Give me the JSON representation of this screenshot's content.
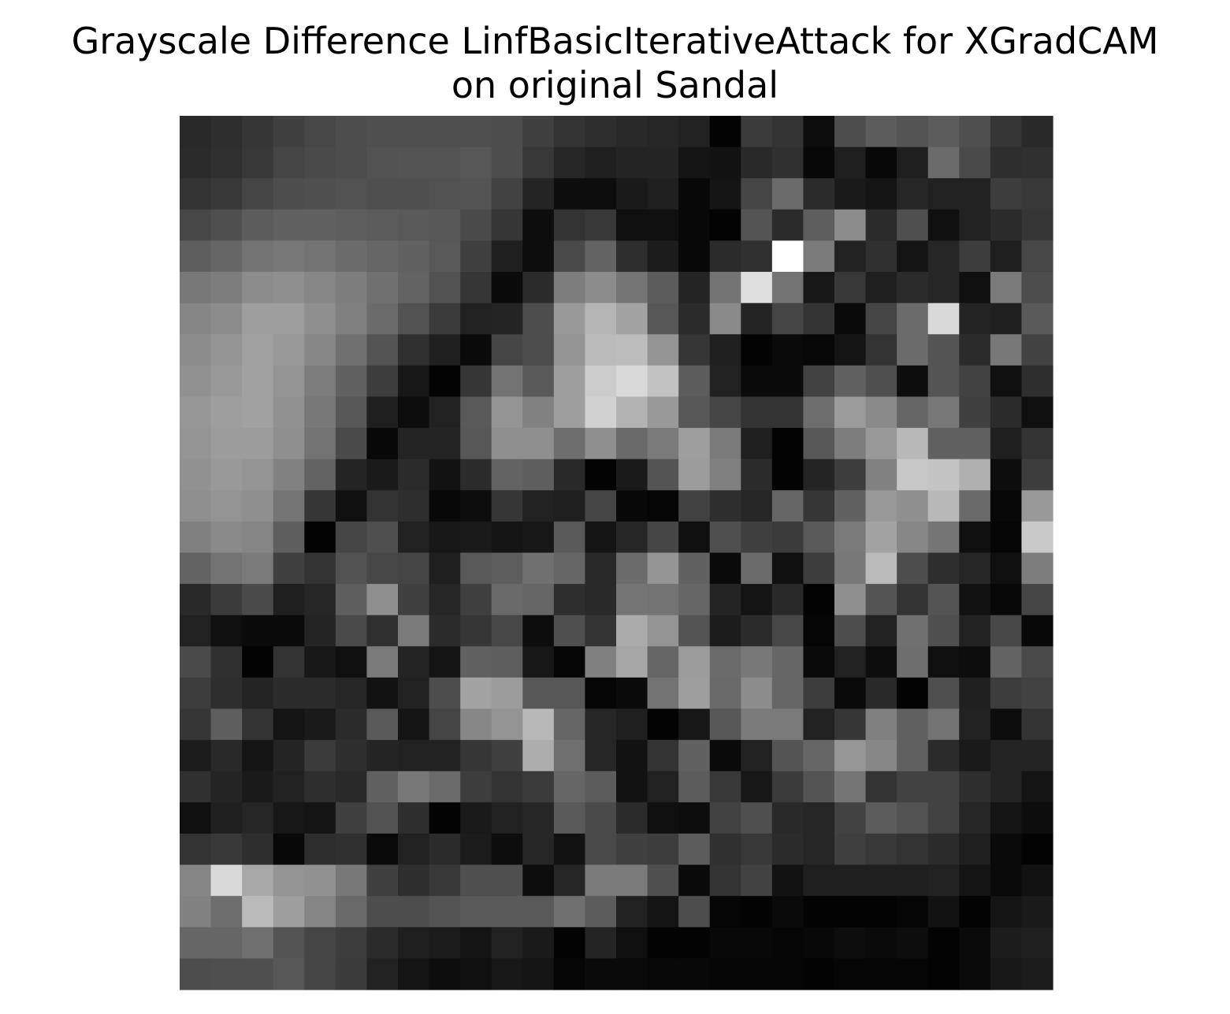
{
  "chart_data": {
    "type": "heatmap",
    "title_line1": "Grayscale Difference LinfBasicIterativeAttack for XGradCAM",
    "title_line2": "on original Sandal",
    "colormap": "gray",
    "axes_visible": false,
    "rows": 28,
    "cols": 28,
    "values": [
      [
        0.16,
        0.18,
        0.21,
        0.25,
        0.28,
        0.3,
        0.31,
        0.31,
        0.31,
        0.31,
        0.3,
        0.25,
        0.2,
        0.18,
        0.16,
        0.15,
        0.13,
        0.01,
        0.23,
        0.2,
        0.05,
        0.3,
        0.36,
        0.33,
        0.36,
        0.31,
        0.21,
        0.16
      ],
      [
        0.17,
        0.19,
        0.22,
        0.27,
        0.29,
        0.3,
        0.32,
        0.33,
        0.33,
        0.34,
        0.3,
        0.22,
        0.15,
        0.12,
        0.14,
        0.14,
        0.08,
        0.07,
        0.16,
        0.19,
        0.03,
        0.12,
        0.03,
        0.12,
        0.42,
        0.29,
        0.18,
        0.19
      ],
      [
        0.2,
        0.22,
        0.27,
        0.3,
        0.31,
        0.32,
        0.31,
        0.31,
        0.32,
        0.33,
        0.26,
        0.14,
        0.05,
        0.05,
        0.1,
        0.12,
        0.03,
        0.08,
        0.27,
        0.42,
        0.17,
        0.1,
        0.08,
        0.15,
        0.13,
        0.13,
        0.24,
        0.22
      ],
      [
        0.28,
        0.31,
        0.36,
        0.38,
        0.38,
        0.37,
        0.36,
        0.35,
        0.34,
        0.29,
        0.21,
        0.05,
        0.2,
        0.22,
        0.06,
        0.06,
        0.03,
        0.01,
        0.33,
        0.17,
        0.37,
        0.55,
        0.17,
        0.31,
        0.06,
        0.13,
        0.17,
        0.21
      ],
      [
        0.37,
        0.4,
        0.45,
        0.47,
        0.45,
        0.42,
        0.4,
        0.38,
        0.35,
        0.25,
        0.12,
        0.05,
        0.29,
        0.39,
        0.18,
        0.11,
        0.03,
        0.17,
        0.19,
        1.0,
        0.48,
        0.13,
        0.19,
        0.08,
        0.15,
        0.24,
        0.12,
        0.28
      ],
      [
        0.47,
        0.49,
        0.55,
        0.56,
        0.53,
        0.49,
        0.44,
        0.39,
        0.32,
        0.21,
        0.04,
        0.17,
        0.49,
        0.55,
        0.46,
        0.36,
        0.14,
        0.45,
        0.87,
        0.45,
        0.09,
        0.22,
        0.12,
        0.17,
        0.15,
        0.06,
        0.48,
        0.3
      ],
      [
        0.52,
        0.55,
        0.62,
        0.62,
        0.56,
        0.5,
        0.42,
        0.32,
        0.23,
        0.13,
        0.14,
        0.3,
        0.6,
        0.71,
        0.64,
        0.34,
        0.17,
        0.54,
        0.14,
        0.27,
        0.2,
        0.04,
        0.27,
        0.42,
        0.85,
        0.14,
        0.12,
        0.35
      ],
      [
        0.55,
        0.58,
        0.63,
        0.6,
        0.53,
        0.44,
        0.33,
        0.19,
        0.12,
        0.04,
        0.27,
        0.3,
        0.58,
        0.73,
        0.74,
        0.58,
        0.21,
        0.12,
        0.01,
        0.04,
        0.03,
        0.08,
        0.2,
        0.42,
        0.33,
        0.17,
        0.47,
        0.26
      ],
      [
        0.57,
        0.6,
        0.63,
        0.58,
        0.49,
        0.38,
        0.24,
        0.09,
        0.01,
        0.21,
        0.45,
        0.35,
        0.62,
        0.8,
        0.85,
        0.76,
        0.36,
        0.13,
        0.04,
        0.04,
        0.26,
        0.38,
        0.31,
        0.05,
        0.33,
        0.26,
        0.06,
        0.18
      ],
      [
        0.59,
        0.62,
        0.63,
        0.57,
        0.47,
        0.34,
        0.12,
        0.05,
        0.13,
        0.35,
        0.58,
        0.51,
        0.62,
        0.82,
        0.7,
        0.6,
        0.34,
        0.27,
        0.2,
        0.2,
        0.43,
        0.61,
        0.54,
        0.4,
        0.47,
        0.25,
        0.17,
        0.06
      ],
      [
        0.58,
        0.61,
        0.61,
        0.56,
        0.45,
        0.29,
        0.03,
        0.14,
        0.14,
        0.34,
        0.56,
        0.56,
        0.43,
        0.56,
        0.41,
        0.48,
        0.62,
        0.48,
        0.12,
        0.01,
        0.34,
        0.49,
        0.6,
        0.72,
        0.38,
        0.38,
        0.12,
        0.2
      ],
      [
        0.57,
        0.6,
        0.58,
        0.51,
        0.39,
        0.14,
        0.1,
        0.17,
        0.07,
        0.17,
        0.39,
        0.37,
        0.16,
        0.01,
        0.1,
        0.33,
        0.61,
        0.5,
        0.17,
        0.01,
        0.14,
        0.24,
        0.51,
        0.78,
        0.77,
        0.69,
        0.05,
        0.24
      ],
      [
        0.56,
        0.58,
        0.56,
        0.46,
        0.21,
        0.06,
        0.2,
        0.18,
        0.03,
        0.05,
        0.21,
        0.13,
        0.12,
        0.27,
        0.03,
        0.02,
        0.26,
        0.18,
        0.15,
        0.4,
        0.21,
        0.38,
        0.6,
        0.56,
        0.72,
        0.41,
        0.03,
        0.6
      ],
      [
        0.5,
        0.54,
        0.52,
        0.37,
        0.01,
        0.27,
        0.31,
        0.13,
        0.09,
        0.1,
        0.08,
        0.09,
        0.35,
        0.08,
        0.15,
        0.27,
        0.06,
        0.31,
        0.25,
        0.23,
        0.35,
        0.48,
        0.64,
        0.53,
        0.46,
        0.06,
        0.02,
        0.79
      ],
      [
        0.39,
        0.45,
        0.48,
        0.25,
        0.2,
        0.32,
        0.28,
        0.27,
        0.12,
        0.35,
        0.37,
        0.44,
        0.4,
        0.16,
        0.42,
        0.58,
        0.38,
        0.04,
        0.42,
        0.06,
        0.24,
        0.47,
        0.73,
        0.3,
        0.18,
        0.15,
        0.06,
        0.49
      ],
      [
        0.16,
        0.23,
        0.29,
        0.12,
        0.15,
        0.37,
        0.56,
        0.25,
        0.15,
        0.25,
        0.41,
        0.4,
        0.18,
        0.16,
        0.46,
        0.45,
        0.4,
        0.14,
        0.08,
        0.16,
        0.01,
        0.56,
        0.33,
        0.2,
        0.33,
        0.07,
        0.03,
        0.27
      ],
      [
        0.13,
        0.06,
        0.04,
        0.04,
        0.14,
        0.29,
        0.19,
        0.48,
        0.17,
        0.21,
        0.28,
        0.05,
        0.31,
        0.2,
        0.67,
        0.58,
        0.33,
        0.11,
        0.17,
        0.28,
        0.02,
        0.3,
        0.13,
        0.44,
        0.31,
        0.13,
        0.28,
        0.03
      ],
      [
        0.29,
        0.19,
        0.01,
        0.2,
        0.09,
        0.06,
        0.48,
        0.14,
        0.08,
        0.38,
        0.37,
        0.09,
        0.02,
        0.5,
        0.65,
        0.4,
        0.61,
        0.42,
        0.47,
        0.4,
        0.04,
        0.13,
        0.05,
        0.43,
        0.06,
        0.05,
        0.39,
        0.29
      ],
      [
        0.24,
        0.18,
        0.14,
        0.17,
        0.17,
        0.15,
        0.07,
        0.13,
        0.3,
        0.64,
        0.61,
        0.34,
        0.34,
        0.02,
        0.04,
        0.45,
        0.62,
        0.41,
        0.55,
        0.4,
        0.24,
        0.04,
        0.16,
        0.01,
        0.31,
        0.12,
        0.24,
        0.26
      ],
      [
        0.21,
        0.37,
        0.2,
        0.08,
        0.1,
        0.17,
        0.35,
        0.08,
        0.27,
        0.53,
        0.58,
        0.72,
        0.4,
        0.15,
        0.12,
        0.01,
        0.09,
        0.34,
        0.48,
        0.48,
        0.13,
        0.21,
        0.5,
        0.38,
        0.45,
        0.13,
        0.05,
        0.2
      ],
      [
        0.11,
        0.16,
        0.08,
        0.14,
        0.23,
        0.18,
        0.14,
        0.13,
        0.13,
        0.21,
        0.25,
        0.68,
        0.44,
        0.15,
        0.07,
        0.2,
        0.38,
        0.04,
        0.13,
        0.33,
        0.4,
        0.59,
        0.53,
        0.38,
        0.17,
        0.1,
        0.14,
        0.14
      ],
      [
        0.19,
        0.14,
        0.1,
        0.13,
        0.18,
        0.16,
        0.38,
        0.47,
        0.42,
        0.24,
        0.2,
        0.23,
        0.4,
        0.36,
        0.07,
        0.13,
        0.36,
        0.22,
        0.09,
        0.23,
        0.33,
        0.46,
        0.2,
        0.26,
        0.26,
        0.18,
        0.14,
        0.08
      ],
      [
        0.06,
        0.12,
        0.15,
        0.09,
        0.08,
        0.25,
        0.32,
        0.18,
        0.01,
        0.1,
        0.13,
        0.15,
        0.35,
        0.29,
        0.17,
        0.06,
        0.05,
        0.26,
        0.31,
        0.16,
        0.15,
        0.26,
        0.36,
        0.32,
        0.26,
        0.15,
        0.08,
        0.05
      ],
      [
        0.2,
        0.22,
        0.18,
        0.03,
        0.18,
        0.19,
        0.04,
        0.13,
        0.17,
        0.11,
        0.05,
        0.15,
        0.07,
        0.29,
        0.25,
        0.24,
        0.36,
        0.19,
        0.22,
        0.17,
        0.15,
        0.25,
        0.22,
        0.2,
        0.17,
        0.12,
        0.04,
        0.01
      ],
      [
        0.52,
        0.85,
        0.66,
        0.58,
        0.57,
        0.47,
        0.25,
        0.18,
        0.22,
        0.31,
        0.31,
        0.05,
        0.15,
        0.48,
        0.48,
        0.31,
        0.04,
        0.2,
        0.26,
        0.07,
        0.12,
        0.12,
        0.12,
        0.12,
        0.13,
        0.08,
        0.04,
        0.07
      ],
      [
        0.51,
        0.43,
        0.73,
        0.62,
        0.52,
        0.41,
        0.3,
        0.3,
        0.33,
        0.35,
        0.35,
        0.35,
        0.44,
        0.36,
        0.13,
        0.08,
        0.3,
        0.02,
        0.01,
        0.04,
        0.01,
        0.01,
        0.01,
        0.02,
        0.07,
        0.01,
        0.08,
        0.1
      ],
      [
        0.4,
        0.4,
        0.44,
        0.33,
        0.27,
        0.24,
        0.17,
        0.12,
        0.11,
        0.08,
        0.13,
        0.1,
        0.01,
        0.14,
        0.06,
        0.01,
        0.01,
        0.03,
        0.03,
        0.02,
        0.03,
        0.05,
        0.04,
        0.05,
        0.01,
        0.04,
        0.11,
        0.12
      ],
      [
        0.3,
        0.31,
        0.31,
        0.34,
        0.27,
        0.23,
        0.13,
        0.08,
        0.05,
        0.06,
        0.09,
        0.08,
        0.02,
        0.04,
        0.04,
        0.03,
        0.03,
        0.02,
        0.02,
        0.02,
        0.01,
        0.02,
        0.02,
        0.02,
        0.01,
        0.04,
        0.09,
        0.11
      ]
    ]
  }
}
